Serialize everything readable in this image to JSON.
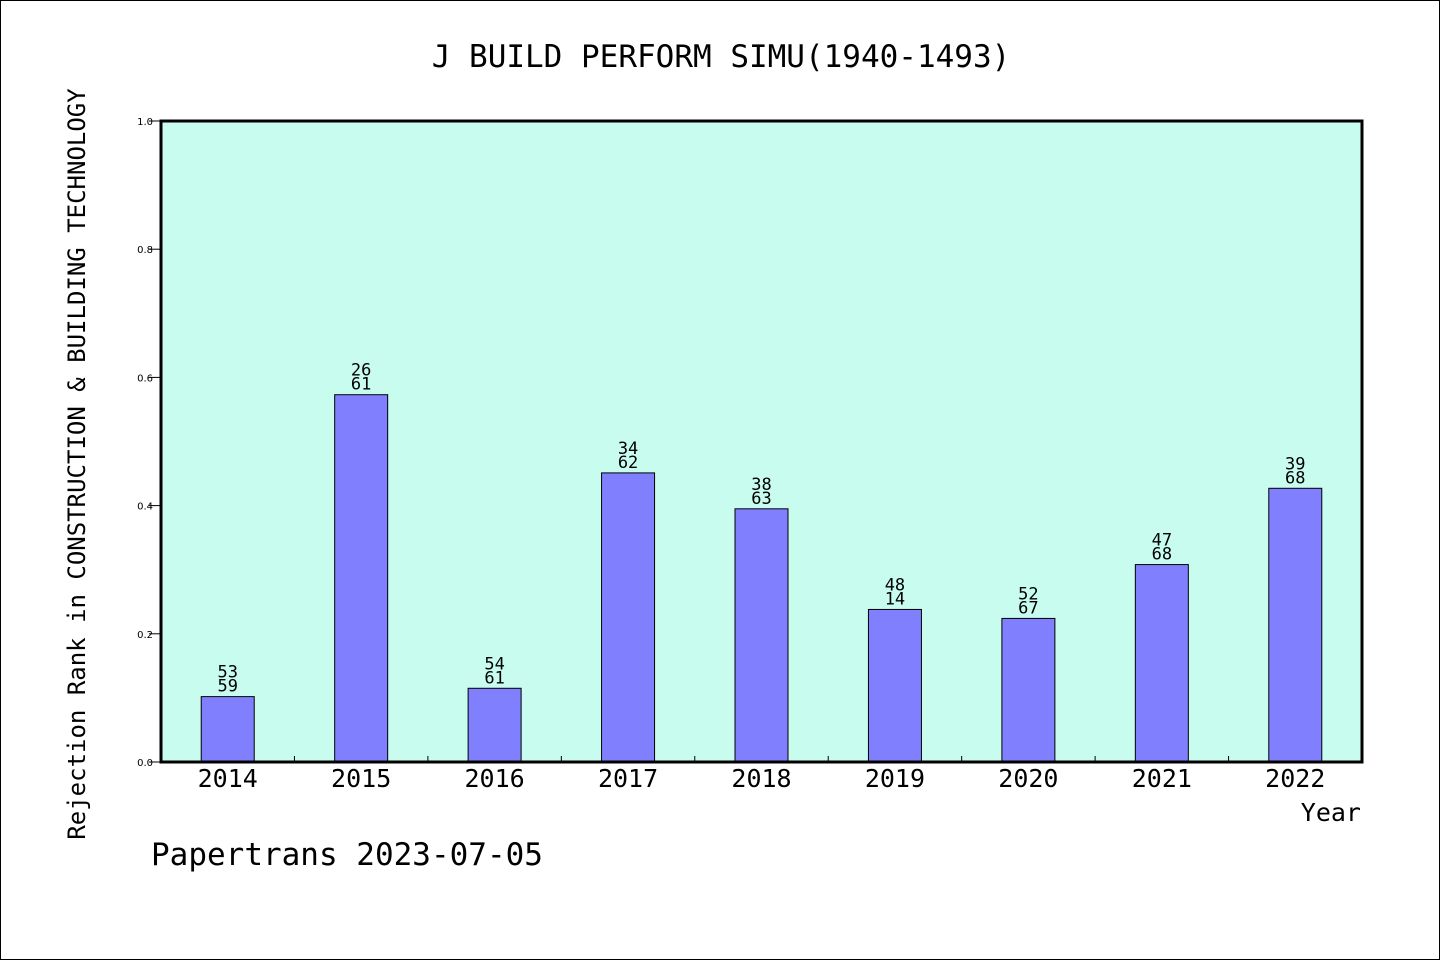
{
  "chart_data": {
    "type": "bar",
    "title": "J BUILD PERFORM SIMU(1940-1493)",
    "xlabel": "Year",
    "ylabel": "Rejection Rank in CONSTRUCTION & BUILDING TECHNOLOGY",
    "footer": "Papertrans 2023-07-05",
    "categories": [
      "2014",
      "2015",
      "2016",
      "2017",
      "2018",
      "2019",
      "2020",
      "2021",
      "2022"
    ],
    "values": [
      0.102,
      0.573,
      0.115,
      0.451,
      0.395,
      0.238,
      0.224,
      0.308,
      0.427
    ],
    "labels_top": [
      "53",
      "26",
      "54",
      "34",
      "38",
      "48",
      "52",
      "47",
      "39"
    ],
    "labels_bottom": [
      "59",
      "61",
      "61",
      "62",
      "63",
      "14",
      "67",
      "68",
      "68"
    ],
    "ylim": [
      0,
      1.0
    ],
    "yticks": [
      "0.0",
      "0.2",
      "0.4",
      "0.6",
      "0.8",
      "1.0"
    ],
    "grid": false,
    "colors": {
      "plot_background": "#c8fcee",
      "bar_fill": "#8080ff",
      "bar_stroke": "#000000"
    }
  }
}
